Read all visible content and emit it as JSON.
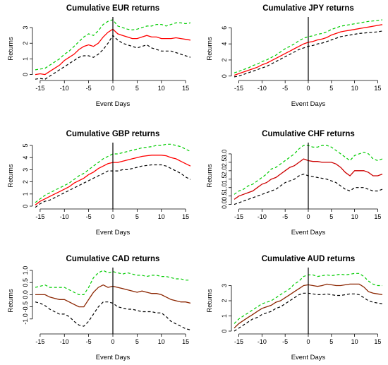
{
  "chart_data": [
    {
      "type": "line",
      "title": "Cumulative EUR returns",
      "xlabel": "Event Days",
      "ylabel": "Returns",
      "xlim": [
        -16,
        16
      ],
      "ylim": [
        -0.2,
        3.5
      ],
      "xticks": [
        -15,
        -10,
        -5,
        0,
        5,
        10,
        15
      ],
      "yticks": [
        0,
        1,
        2,
        3
      ],
      "event_line_x": 0,
      "mean_color": "#ff0000",
      "x": [
        -16,
        -15,
        -14,
        -13,
        -12,
        -11,
        -10,
        -9,
        -8,
        -7,
        -6,
        -5,
        -4,
        -3,
        -2,
        -1,
        0,
        1,
        2,
        3,
        4,
        5,
        6,
        7,
        8,
        9,
        10,
        11,
        12,
        13,
        14,
        15,
        16
      ],
      "series": [
        {
          "style": "dashed",
          "color": "#00cc00",
          "values": [
            0.3,
            0.35,
            0.4,
            0.6,
            0.8,
            1.0,
            1.3,
            1.5,
            1.8,
            2.1,
            2.4,
            2.6,
            2.5,
            2.8,
            3.2,
            3.4,
            3.5,
            3.1,
            3.0,
            2.9,
            2.85,
            2.9,
            3.0,
            3.1,
            3.1,
            3.2,
            3.2,
            3.1,
            3.2,
            3.3,
            3.3,
            3.25,
            3.3
          ]
        },
        {
          "style": "solid",
          "color": "#ff0000",
          "values": [
            0.0,
            0.05,
            0.0,
            0.2,
            0.4,
            0.6,
            0.9,
            1.1,
            1.3,
            1.6,
            1.8,
            1.9,
            1.8,
            2.0,
            2.4,
            2.7,
            2.9,
            2.6,
            2.5,
            2.4,
            2.3,
            2.3,
            2.4,
            2.5,
            2.4,
            2.4,
            2.3,
            2.3,
            2.3,
            2.35,
            2.3,
            2.25,
            2.2
          ]
        },
        {
          "style": "dashed",
          "color": "#000000",
          "values": [
            -0.3,
            -0.25,
            -0.3,
            -0.1,
            0.1,
            0.3,
            0.5,
            0.7,
            0.9,
            1.1,
            1.2,
            1.2,
            1.1,
            1.3,
            1.6,
            2.0,
            2.5,
            2.2,
            2.0,
            1.9,
            1.8,
            1.7,
            1.8,
            1.9,
            1.7,
            1.6,
            1.5,
            1.5,
            1.5,
            1.4,
            1.3,
            1.2,
            1.1
          ]
        }
      ]
    },
    {
      "type": "line",
      "title": "Cumulative JPY returns",
      "xlabel": "Event Days",
      "ylabel": "Returns",
      "xlim": [
        -16,
        16
      ],
      "ylim": [
        -0.2,
        7
      ],
      "xticks": [
        -15,
        -10,
        -5,
        0,
        5,
        10,
        15
      ],
      "yticks": [
        0,
        2,
        4,
        6
      ],
      "event_line_x": 0,
      "mean_color": "#ff0000",
      "x": [
        -16,
        -15,
        -14,
        -13,
        -12,
        -11,
        -10,
        -9,
        -8,
        -7,
        -6,
        -5,
        -4,
        -3,
        -2,
        -1,
        0,
        1,
        2,
        3,
        4,
        5,
        6,
        7,
        8,
        9,
        10,
        11,
        12,
        13,
        14,
        15,
        16
      ],
      "series": [
        {
          "style": "dashed",
          "color": "#00cc00",
          "values": [
            0.4,
            0.6,
            0.8,
            1.0,
            1.3,
            1.5,
            1.8,
            2.0,
            2.3,
            2.6,
            3.0,
            3.4,
            3.7,
            4.0,
            4.4,
            4.7,
            4.9,
            5.0,
            5.2,
            5.3,
            5.5,
            5.8,
            6.0,
            6.2,
            6.3,
            6.4,
            6.5,
            6.6,
            6.7,
            6.8,
            6.85,
            6.9,
            7.0
          ]
        },
        {
          "style": "solid",
          "color": "#ff0000",
          "values": [
            0.1,
            0.3,
            0.5,
            0.7,
            0.9,
            1.1,
            1.4,
            1.6,
            1.9,
            2.2,
            2.5,
            2.8,
            3.1,
            3.4,
            3.7,
            4.0,
            4.2,
            4.3,
            4.5,
            4.6,
            4.8,
            5.1,
            5.3,
            5.5,
            5.6,
            5.7,
            5.8,
            5.9,
            6.0,
            6.1,
            6.2,
            6.3,
            6.4
          ]
        },
        {
          "style": "dashed",
          "color": "#000000",
          "values": [
            -0.1,
            0.0,
            0.2,
            0.4,
            0.6,
            0.8,
            1.0,
            1.2,
            1.5,
            1.8,
            2.1,
            2.4,
            2.7,
            3.0,
            3.3,
            3.5,
            3.7,
            3.8,
            4.0,
            4.1,
            4.3,
            4.5,
            4.7,
            4.9,
            5.0,
            5.1,
            5.2,
            5.3,
            5.35,
            5.4,
            5.45,
            5.5,
            5.6
          ]
        }
      ]
    },
    {
      "type": "line",
      "title": "Cumulative GBP returns",
      "xlabel": "Event Days",
      "ylabel": "Returns",
      "xlim": [
        -16,
        16
      ],
      "ylim": [
        0,
        5
      ],
      "xticks": [
        -15,
        -10,
        -5,
        0,
        5,
        10,
        15
      ],
      "yticks": [
        0,
        1,
        2,
        3,
        4,
        5
      ],
      "event_line_x": 0,
      "mean_color": "#ff0000",
      "x": [
        -16,
        -15,
        -14,
        -13,
        -12,
        -11,
        -10,
        -9,
        -8,
        -7,
        -6,
        -5,
        -4,
        -3,
        -2,
        -1,
        0,
        1,
        2,
        3,
        4,
        5,
        6,
        7,
        8,
        9,
        10,
        11,
        12,
        13,
        14,
        15,
        16
      ],
      "series": [
        {
          "style": "dashed",
          "color": "#00cc00",
          "values": [
            0.3,
            0.6,
            0.9,
            1.1,
            1.3,
            1.5,
            1.7,
            1.9,
            2.2,
            2.5,
            2.7,
            3.0,
            3.3,
            3.6,
            3.9,
            4.1,
            4.3,
            4.3,
            4.4,
            4.5,
            4.6,
            4.7,
            4.8,
            4.85,
            4.9,
            5.0,
            5.0,
            5.1,
            5.1,
            5.0,
            4.9,
            4.7,
            4.5
          ]
        },
        {
          "style": "solid",
          "color": "#ff0000",
          "values": [
            0.1,
            0.4,
            0.6,
            0.8,
            1.0,
            1.2,
            1.4,
            1.6,
            1.9,
            2.1,
            2.3,
            2.6,
            2.8,
            3.1,
            3.3,
            3.5,
            3.6,
            3.6,
            3.7,
            3.8,
            3.9,
            4.0,
            4.1,
            4.15,
            4.2,
            4.2,
            4.2,
            4.15,
            4.0,
            3.9,
            3.7,
            3.5,
            3.3
          ]
        },
        {
          "style": "dashed",
          "color": "#000000",
          "values": [
            -0.1,
            0.2,
            0.4,
            0.5,
            0.7,
            0.9,
            1.1,
            1.3,
            1.5,
            1.7,
            1.9,
            2.1,
            2.3,
            2.5,
            2.7,
            2.9,
            2.9,
            2.9,
            3.0,
            3.0,
            3.1,
            3.2,
            3.3,
            3.35,
            3.4,
            3.4,
            3.4,
            3.3,
            3.1,
            2.9,
            2.7,
            2.4,
            2.2
          ]
        }
      ]
    },
    {
      "type": "line",
      "title": "Cumulative CHF returns",
      "xlabel": "Event Days",
      "ylabel": "Returns",
      "xlim": [
        -16,
        16
      ],
      "ylim": [
        -0.1,
        3.5
      ],
      "xticks": [
        -15,
        -10,
        -5,
        0,
        5,
        10,
        15
      ],
      "yticks": [
        0.0,
        0.5,
        1.0,
        1.5,
        2.0,
        2.5,
        3.0
      ],
      "event_line_x": 0,
      "mean_color": "#cc0000",
      "x": [
        -16,
        -15,
        -14,
        -13,
        -12,
        -11,
        -10,
        -9,
        -8,
        -7,
        -6,
        -5,
        -4,
        -3,
        -2,
        -1,
        0,
        1,
        2,
        3,
        4,
        5,
        6,
        7,
        8,
        9,
        10,
        11,
        12,
        13,
        14,
        15,
        16
      ],
      "series": [
        {
          "style": "dashed",
          "color": "#00cc00",
          "values": [
            0.6,
            0.8,
            0.9,
            1.1,
            1.2,
            1.4,
            1.6,
            1.8,
            2.1,
            2.2,
            2.4,
            2.6,
            2.8,
            3.0,
            3.3,
            3.5,
            3.5,
            3.4,
            3.4,
            3.5,
            3.5,
            3.4,
            3.2,
            3.0,
            2.8,
            2.6,
            2.9,
            3.0,
            3.1,
            3.0,
            2.7,
            2.6,
            2.7
          ]
        },
        {
          "style": "solid",
          "color": "#cc0000",
          "values": [
            0.3,
            0.5,
            0.6,
            0.7,
            0.8,
            1.0,
            1.2,
            1.3,
            1.5,
            1.6,
            1.8,
            2.0,
            2.2,
            2.3,
            2.5,
            2.7,
            2.6,
            2.55,
            2.55,
            2.5,
            2.5,
            2.5,
            2.4,
            2.2,
            1.9,
            1.7,
            2.0,
            2.0,
            2.0,
            1.9,
            1.7,
            1.7,
            1.8
          ]
        },
        {
          "style": "dashed",
          "color": "#000000",
          "values": [
            0.0,
            0.1,
            0.2,
            0.3,
            0.4,
            0.5,
            0.6,
            0.7,
            0.8,
            0.9,
            1.1,
            1.3,
            1.4,
            1.5,
            1.7,
            1.8,
            1.7,
            1.65,
            1.6,
            1.55,
            1.5,
            1.4,
            1.3,
            1.1,
            0.9,
            0.8,
            1.0,
            1.0,
            1.0,
            0.9,
            0.8,
            0.8,
            0.9
          ]
        }
      ]
    },
    {
      "type": "line",
      "title": "Cumulative CAD returns",
      "xlabel": "Event Days",
      "ylabel": "Returns",
      "xlim": [
        -16,
        16
      ],
      "ylim": [
        -1.5,
        1.0
      ],
      "xticks": [
        -15,
        -10,
        -5,
        0,
        5,
        10,
        15
      ],
      "yticks": [
        -1.0,
        -0.5,
        0.0,
        0.5,
        1.0
      ],
      "event_line_x": 0,
      "mean_color": "#8b2500",
      "x": [
        -16,
        -15,
        -14,
        -13,
        -12,
        -11,
        -10,
        -9,
        -8,
        -7,
        -6,
        -5,
        -4,
        -3,
        -2,
        -1,
        0,
        1,
        2,
        3,
        4,
        5,
        6,
        7,
        8,
        9,
        10,
        11,
        12,
        13,
        14,
        15,
        16
      ],
      "series": [
        {
          "style": "dashed",
          "color": "#00cc00",
          "values": [
            0.3,
            0.35,
            0.4,
            0.3,
            0.3,
            0.3,
            0.3,
            0.2,
            0.1,
            0.0,
            0.0,
            0.3,
            0.7,
            0.9,
            1.0,
            0.9,
            0.95,
            0.9,
            0.85,
            0.9,
            0.85,
            0.8,
            0.8,
            0.75,
            0.8,
            0.8,
            0.75,
            0.75,
            0.7,
            0.65,
            0.65,
            0.6,
            0.6
          ]
        },
        {
          "style": "solid",
          "color": "#8b2500",
          "values": [
            0.0,
            0.0,
            0.0,
            -0.1,
            -0.15,
            -0.2,
            -0.2,
            -0.3,
            -0.4,
            -0.5,
            -0.5,
            -0.2,
            0.1,
            0.3,
            0.4,
            0.3,
            0.35,
            0.3,
            0.25,
            0.2,
            0.15,
            0.1,
            0.15,
            0.1,
            0.05,
            0.05,
            0.0,
            -0.1,
            -0.2,
            -0.25,
            -0.3,
            -0.3,
            -0.35
          ]
        },
        {
          "style": "dashed",
          "color": "#000000",
          "values": [
            -0.3,
            -0.35,
            -0.45,
            -0.6,
            -0.7,
            -0.8,
            -0.8,
            -0.9,
            -1.1,
            -1.25,
            -1.3,
            -1.1,
            -0.8,
            -0.5,
            -0.3,
            -0.3,
            -0.35,
            -0.5,
            -0.55,
            -0.6,
            -0.6,
            -0.65,
            -0.7,
            -0.7,
            -0.7,
            -0.75,
            -0.75,
            -0.9,
            -1.1,
            -1.2,
            -1.3,
            -1.4,
            -1.45
          ]
        }
      ]
    },
    {
      "type": "line",
      "title": "Cumulative AUD returns",
      "xlabel": "Event Days",
      "ylabel": "Returns",
      "xlim": [
        -16,
        16
      ],
      "ylim": [
        0,
        4
      ],
      "xticks": [
        -15,
        -10,
        -5,
        0,
        5,
        10,
        15
      ],
      "yticks": [
        0,
        1,
        2,
        3
      ],
      "event_line_x": 0,
      "mean_color": "#8b2500",
      "x": [
        -16,
        -15,
        -14,
        -13,
        -12,
        -11,
        -10,
        -9,
        -8,
        -7,
        -6,
        -5,
        -4,
        -3,
        -2,
        -1,
        0,
        1,
        2,
        3,
        4,
        5,
        6,
        7,
        8,
        9,
        10,
        11,
        12,
        13,
        14,
        15,
        16
      ],
      "series": [
        {
          "style": "dashed",
          "color": "#00cc00",
          "values": [
            0.5,
            0.8,
            1.0,
            1.2,
            1.4,
            1.6,
            1.8,
            1.9,
            2.0,
            2.2,
            2.4,
            2.6,
            2.8,
            3.1,
            3.3,
            3.6,
            3.7,
            3.7,
            3.6,
            3.65,
            3.7,
            3.65,
            3.7,
            3.75,
            3.7,
            3.75,
            3.8,
            3.8,
            3.6,
            3.3,
            3.1,
            3.0,
            3.0
          ]
        },
        {
          "style": "solid",
          "color": "#8b2500",
          "values": [
            0.2,
            0.5,
            0.7,
            0.9,
            1.1,
            1.3,
            1.5,
            1.6,
            1.7,
            1.9,
            2.0,
            2.2,
            2.4,
            2.6,
            2.8,
            3.0,
            3.05,
            3.0,
            2.95,
            3.0,
            3.1,
            3.05,
            3.0,
            3.0,
            3.05,
            3.1,
            3.1,
            3.1,
            2.9,
            2.6,
            2.5,
            2.45,
            2.4
          ]
        },
        {
          "style": "dashed",
          "color": "#000000",
          "values": [
            0.0,
            0.2,
            0.4,
            0.6,
            0.8,
            0.9,
            1.1,
            1.2,
            1.3,
            1.5,
            1.6,
            1.8,
            2.0,
            2.2,
            2.4,
            2.5,
            2.5,
            2.45,
            2.4,
            2.4,
            2.45,
            2.4,
            2.35,
            2.35,
            2.4,
            2.45,
            2.45,
            2.4,
            2.2,
            2.0,
            1.9,
            1.85,
            1.8
          ]
        }
      ]
    }
  ]
}
